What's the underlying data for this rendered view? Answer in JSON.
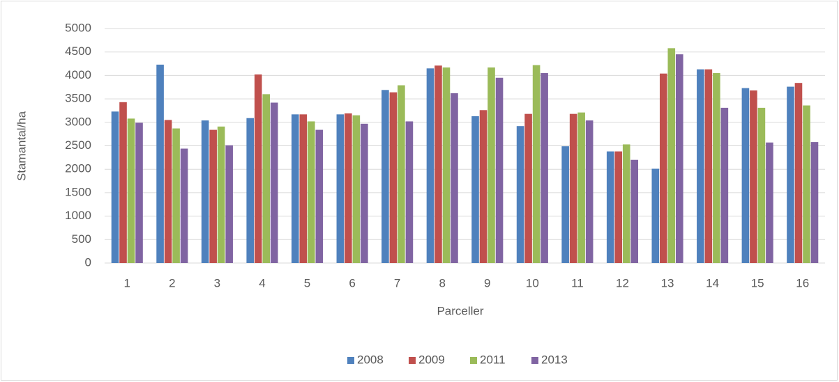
{
  "chart_data": {
    "type": "bar",
    "x_label": "Parceller",
    "y_label": "Stamantal/ha",
    "categories": [
      "1",
      "2",
      "3",
      "4",
      "5",
      "6",
      "7",
      "8",
      "9",
      "10",
      "11",
      "12",
      "13",
      "14",
      "15",
      "16"
    ],
    "series": [
      {
        "name": "2008",
        "color": "#4f81bd",
        "values": [
          3230,
          4230,
          3040,
          3090,
          3170,
          3170,
          3690,
          4150,
          3130,
          2920,
          2490,
          2380,
          2010,
          4130,
          3730,
          3760
        ]
      },
      {
        "name": "2009",
        "color": "#c0504d",
        "values": [
          3430,
          3050,
          2840,
          4020,
          3170,
          3190,
          3640,
          4210,
          3260,
          3180,
          3180,
          2380,
          4040,
          4130,
          3680,
          3840
        ]
      },
      {
        "name": "2011",
        "color": "#9bbb59",
        "values": [
          3080,
          2870,
          2910,
          3600,
          3020,
          3150,
          3790,
          4170,
          4170,
          4220,
          3210,
          2530,
          4580,
          4050,
          3310,
          3360
        ]
      },
      {
        "name": "2013",
        "color": "#8064a2",
        "values": [
          2990,
          2440,
          2510,
          3420,
          2840,
          2970,
          3020,
          3620,
          3950,
          4050,
          3040,
          2200,
          4450,
          3310,
          2570,
          2580
        ]
      }
    ],
    "ylim": [
      0,
      5000
    ],
    "yticks": [
      0,
      500,
      1000,
      1500,
      2000,
      2500,
      3000,
      3500,
      4000,
      4500,
      5000
    ],
    "grid": true,
    "legend": "bottom"
  }
}
